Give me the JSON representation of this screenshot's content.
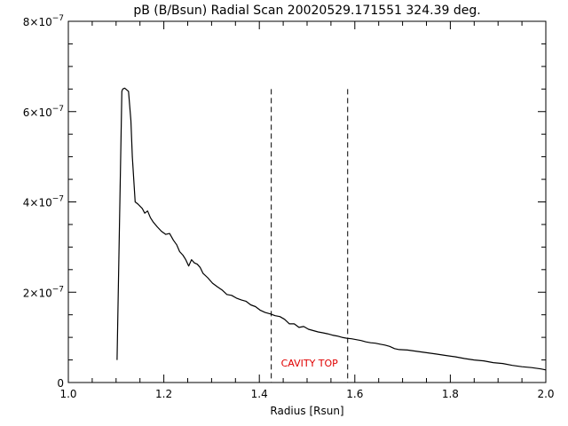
{
  "chart_data": {
    "type": "line",
    "title": "pB (B/Bsun) Radial Scan 20020529.171551 324.39 deg.",
    "xlabel": "Radius [Rsun]",
    "ylabel": "",
    "xlim": [
      1.0,
      2.0
    ],
    "ylim": [
      0,
      8e-07
    ],
    "x_ticks": [
      1.0,
      1.2,
      1.4,
      1.6,
      1.8,
      2.0
    ],
    "x_tick_labels": [
      "1.0",
      "1.2",
      "1.4",
      "1.6",
      "1.8",
      "2.0"
    ],
    "x_minor_step": 0.05,
    "y_ticks": [
      0,
      2e-07,
      4e-07,
      6e-07,
      8e-07
    ],
    "y_tick_labels": [
      {
        "mant": "0",
        "exp": ""
      },
      {
        "mant": "2×10",
        "exp": "−7"
      },
      {
        "mant": "4×10",
        "exp": "−7"
      },
      {
        "mant": "6×10",
        "exp": "−7"
      },
      {
        "mant": "8×10",
        "exp": "−7"
      }
    ],
    "y_minor_step": 5e-08,
    "grid": false,
    "line_color": "#000000",
    "series": [
      {
        "x": [
          1.102,
          1.112,
          1.114,
          1.118,
          1.126,
          1.131,
          1.134,
          1.14,
          1.146,
          1.155,
          1.16,
          1.166,
          1.172,
          1.178,
          1.186,
          1.195,
          1.204,
          1.212,
          1.22,
          1.227,
          1.233,
          1.24,
          1.246,
          1.252,
          1.258,
          1.264,
          1.27,
          1.276,
          1.282,
          1.292,
          1.302,
          1.312,
          1.322,
          1.332,
          1.342,
          1.352,
          1.362,
          1.372,
          1.382,
          1.392,
          1.402,
          1.412,
          1.423,
          1.433,
          1.443,
          1.453,
          1.463,
          1.473,
          1.483,
          1.493,
          1.503,
          1.513,
          1.523,
          1.533,
          1.543,
          1.553,
          1.563,
          1.573,
          1.583,
          1.593,
          1.603,
          1.613,
          1.623,
          1.633,
          1.643,
          1.653,
          1.663,
          1.673,
          1.683,
          1.693,
          1.71,
          1.73,
          1.75,
          1.77,
          1.79,
          1.81,
          1.83,
          1.85,
          1.87,
          1.89,
          1.91,
          1.93,
          1.95,
          1.97,
          1.99,
          2.0
        ],
        "y": [
          5e-08,
          6.45e-07,
          6.5e-07,
          6.52e-07,
          6.45e-07,
          5.8e-07,
          5e-07,
          4e-07,
          3.95e-07,
          3.85e-07,
          3.75e-07,
          3.8e-07,
          3.65e-07,
          3.55e-07,
          3.45e-07,
          3.35e-07,
          3.28e-07,
          3.3e-07,
          3.15e-07,
          3.05e-07,
          2.9e-07,
          2.82e-07,
          2.72e-07,
          2.58e-07,
          2.72e-07,
          2.65e-07,
          2.62e-07,
          2.55e-07,
          2.42e-07,
          2.32e-07,
          2.2e-07,
          2.12e-07,
          2.05e-07,
          1.95e-07,
          1.93e-07,
          1.87e-07,
          1.83e-07,
          1.8e-07,
          1.72e-07,
          1.68e-07,
          1.6e-07,
          1.55e-07,
          1.52e-07,
          1.48e-07,
          1.46e-07,
          1.4e-07,
          1.3e-07,
          1.3e-07,
          1.22e-07,
          1.24e-07,
          1.18e-07,
          1.15e-07,
          1.12e-07,
          1.1e-07,
          1.08e-07,
          1.05e-07,
          1.03e-07,
          1e-07,
          9.8e-08,
          9.7e-08,
          9.5e-08,
          9.3e-08,
          9e-08,
          8.8e-08,
          8.7e-08,
          8.5e-08,
          8.3e-08,
          8e-08,
          7.5e-08,
          7.3e-08,
          7.2e-08,
          6.9e-08,
          6.6e-08,
          6.3e-08,
          6e-08,
          5.7e-08,
          5.3e-08,
          5e-08,
          4.8e-08,
          4.4e-08,
          4.2e-08,
          3.8e-08,
          3.5e-08,
          3.3e-08,
          3e-08,
          2.8e-08
        ]
      }
    ],
    "vlines": [
      {
        "x": 1.425,
        "y_top": 6.5e-07,
        "style": "dashed",
        "color": "#000000"
      },
      {
        "x": 1.585,
        "y_top": 6.5e-07,
        "style": "dashed",
        "color": "#000000"
      }
    ],
    "annotations": [
      {
        "text": "CAVITY TOP",
        "x": 1.505,
        "y": 3.5e-08,
        "color": "#e00000"
      }
    ]
  }
}
